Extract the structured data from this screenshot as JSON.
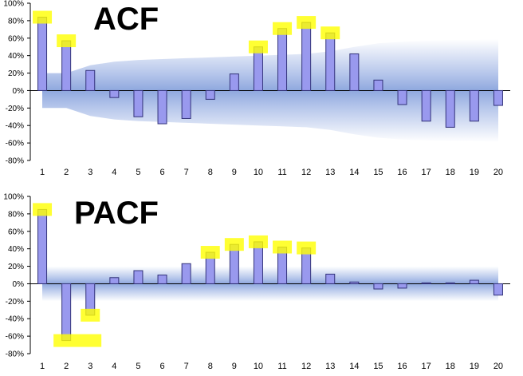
{
  "chart_data": [
    {
      "type": "bar",
      "title": "ACF",
      "categories": [
        "1",
        "2",
        "3",
        "4",
        "5",
        "6",
        "7",
        "8",
        "9",
        "10",
        "11",
        "12",
        "13",
        "14",
        "15",
        "16",
        "17",
        "18",
        "19",
        "20"
      ],
      "series": [
        {
          "values": [
            84,
            57,
            23,
            -8,
            -30,
            -38,
            -32,
            -10,
            19,
            50,
            71,
            78,
            66,
            42,
            12,
            -16,
            -35,
            -42,
            -35,
            -17
          ]
        }
      ],
      "ylim": [
        -80,
        100
      ],
      "yticks": [
        "100%",
        "80%",
        "60%",
        "40%",
        "20%",
        "0%",
        "-20%",
        "-40%",
        "-60%",
        "-80%"
      ],
      "confidence_band": [
        20,
        20,
        29,
        33,
        35,
        36,
        37,
        38,
        39,
        40,
        41,
        42,
        45,
        50,
        54,
        56,
        57,
        58,
        58,
        59
      ],
      "highlighted_lags": [
        1,
        2,
        10,
        11,
        12,
        13
      ],
      "colors": {
        "bar": "#9999ee",
        "bar_stroke": "#33337a",
        "band": "#a9bde6",
        "highlight": "#ffff00"
      }
    },
    {
      "type": "bar",
      "title": "PACF",
      "categories": [
        "1",
        "2",
        "3",
        "4",
        "5",
        "6",
        "7",
        "8",
        "9",
        "10",
        "11",
        "12",
        "13",
        "14",
        "15",
        "16",
        "17",
        "18",
        "19",
        "20"
      ],
      "series": [
        {
          "values": [
            85,
            -65,
            -36,
            7,
            15,
            10,
            23,
            36,
            45,
            48,
            42,
            41,
            11,
            2,
            -6,
            -5,
            1,
            1,
            4,
            -13
          ]
        }
      ],
      "ylim": [
        -80,
        100
      ],
      "yticks": [
        "100%",
        "80%",
        "60%",
        "40%",
        "20%",
        "0%",
        "-20%",
        "-40%",
        "-60%",
        "-80%"
      ],
      "confidence_band": [
        20,
        20,
        20,
        20,
        20,
        20,
        20,
        20,
        20,
        20,
        20,
        20,
        20,
        20,
        20,
        20,
        20,
        20,
        20,
        20
      ],
      "highlighted_lags": [
        1,
        2,
        3,
        8,
        9,
        10,
        11,
        12
      ],
      "colors": {
        "bar": "#9999ee",
        "bar_stroke": "#33337a",
        "band": "#a9bde6",
        "highlight": "#ffff00"
      }
    }
  ]
}
